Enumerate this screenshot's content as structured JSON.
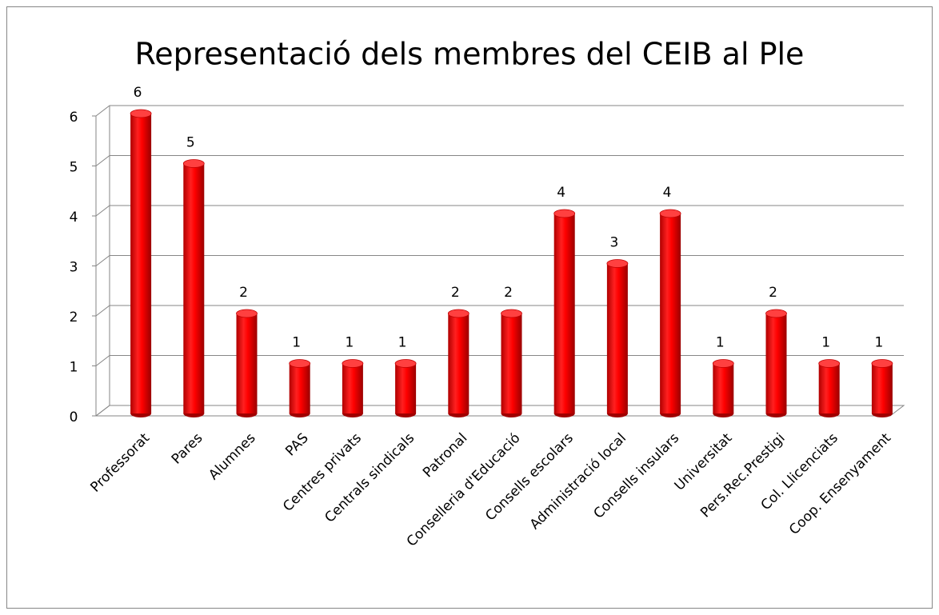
{
  "chart_data": {
    "type": "bar",
    "title": "Representació dels membres del CEIB al Ple",
    "categories": [
      "Professorat",
      "Pares",
      "Alumnes",
      "PAS",
      "Centres privats",
      "Centrals sindicals",
      "Patronal",
      "Conselleria d'Educació",
      "Consells escolars",
      "Administració local",
      "Consells insulars",
      "Universitat",
      "Pers.Rec.Prestigi",
      "Col. Llicenciats",
      "Coop. Ensenyament"
    ],
    "values": [
      6,
      5,
      2,
      1,
      1,
      1,
      2,
      2,
      4,
      3,
      4,
      1,
      2,
      1,
      1
    ],
    "color": "#ff0000",
    "ylim": [
      0,
      6
    ],
    "yticks": [
      0,
      1,
      2,
      3,
      4,
      5,
      6
    ],
    "grid": true
  }
}
